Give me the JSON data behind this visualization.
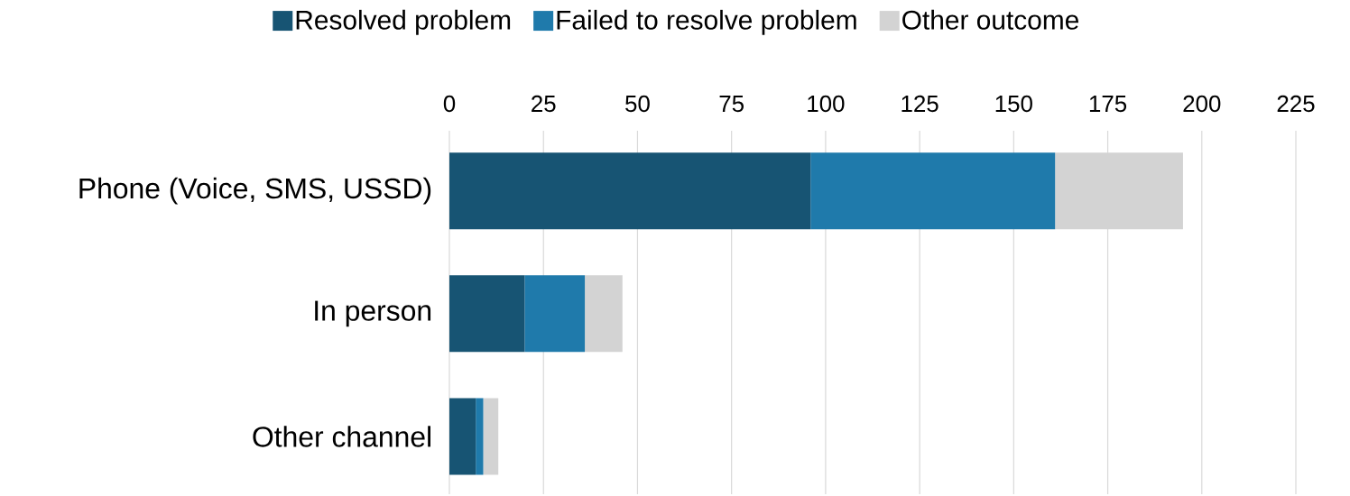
{
  "chart_data": {
    "type": "bar",
    "orientation": "horizontal",
    "stacked": true,
    "categories": [
      "Phone (Voice, SMS, USSD)",
      "In person",
      "Other channel"
    ],
    "series": [
      {
        "name": "Resolved problem",
        "color": "#175473",
        "values": [
          96,
          20,
          7
        ]
      },
      {
        "name": "Failed to resolve problem",
        "color": "#1f7aab",
        "values": [
          65,
          16,
          2
        ]
      },
      {
        "name": "Other outcome",
        "color": "#d3d3d3",
        "values": [
          34,
          10,
          4
        ]
      }
    ],
    "xlim": [
      0,
      225
    ],
    "xticks": [
      0,
      25,
      50,
      75,
      100,
      125,
      150,
      175,
      200,
      225
    ],
    "grid": "x",
    "legend": "top"
  }
}
